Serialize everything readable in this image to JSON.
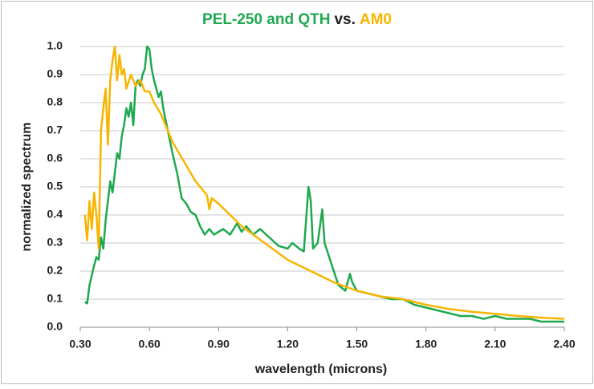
{
  "chart_data": {
    "type": "line",
    "title": [
      {
        "text": "PEL-250 and QTH",
        "color": "#1fa84f"
      },
      {
        "text": "vs.",
        "color": "#222222"
      },
      {
        "text": "AM0",
        "color": "#f7b500"
      }
    ],
    "x_label": "wavelength (microns)",
    "y_label": "normalized spectrum",
    "xlim": [
      0.3,
      2.4
    ],
    "ylim": [
      0,
      1
    ],
    "xticks": [
      {
        "value": 0.3,
        "label": "0.30"
      },
      {
        "value": 0.6,
        "label": "0.60"
      },
      {
        "value": 0.9,
        "label": "0.90"
      },
      {
        "value": 1.2,
        "label": "1.20"
      },
      {
        "value": 1.5,
        "label": "1.50"
      },
      {
        "value": 1.8,
        "label": "1.80"
      },
      {
        "value": 2.1,
        "label": "2.10"
      },
      {
        "value": 2.4,
        "label": "2.40"
      }
    ],
    "yticks": [
      {
        "value": 0,
        "label": "0.0"
      },
      0.1,
      0.2,
      0.3,
      0.4,
      0.5,
      0.6,
      0.7,
      0.8,
      0.9,
      {
        "value": 1,
        "label": "1.0"
      }
    ],
    "grid": true,
    "series": [
      {
        "color": "#1fa84f",
        "x": [
          0.32,
          0.33,
          0.34,
          0.36,
          0.37,
          0.38,
          0.39,
          0.4,
          0.41,
          0.42,
          0.43,
          0.44,
          0.45,
          0.46,
          0.47,
          0.48,
          0.49,
          0.5,
          0.51,
          0.52,
          0.53,
          0.54,
          0.55,
          0.56,
          0.57,
          0.58,
          0.59,
          0.6,
          0.61,
          0.62,
          0.63,
          0.64,
          0.65,
          0.66,
          0.68,
          0.7,
          0.72,
          0.74,
          0.76,
          0.78,
          0.8,
          0.82,
          0.84,
          0.86,
          0.88,
          0.9,
          0.92,
          0.95,
          0.98,
          1.0,
          1.02,
          1.05,
          1.08,
          1.12,
          1.16,
          1.2,
          1.22,
          1.25,
          1.27,
          1.29,
          1.3,
          1.31,
          1.33,
          1.35,
          1.36,
          1.38,
          1.42,
          1.45,
          1.47,
          1.48,
          1.5,
          1.55,
          1.6,
          1.65,
          1.7,
          1.75,
          1.8,
          1.85,
          1.9,
          1.95,
          2.0,
          2.05,
          2.1,
          2.15,
          2.2,
          2.25,
          2.3,
          2.35,
          2.4
        ],
        "values": [
          0.09,
          0.085,
          0.15,
          0.22,
          0.25,
          0.24,
          0.32,
          0.28,
          0.38,
          0.45,
          0.52,
          0.48,
          0.55,
          0.62,
          0.6,
          0.68,
          0.72,
          0.78,
          0.75,
          0.8,
          0.72,
          0.86,
          0.88,
          0.86,
          0.9,
          0.92,
          1.0,
          0.99,
          0.92,
          0.88,
          0.85,
          0.82,
          0.84,
          0.78,
          0.7,
          0.62,
          0.55,
          0.46,
          0.44,
          0.41,
          0.4,
          0.36,
          0.33,
          0.35,
          0.33,
          0.34,
          0.35,
          0.33,
          0.37,
          0.34,
          0.36,
          0.33,
          0.35,
          0.32,
          0.29,
          0.28,
          0.3,
          0.28,
          0.27,
          0.5,
          0.45,
          0.28,
          0.3,
          0.42,
          0.3,
          0.25,
          0.15,
          0.13,
          0.19,
          0.16,
          0.13,
          0.12,
          0.11,
          0.1,
          0.1,
          0.08,
          0.07,
          0.06,
          0.05,
          0.04,
          0.04,
          0.03,
          0.04,
          0.03,
          0.03,
          0.03,
          0.02,
          0.02,
          0.02
        ]
      },
      {
        "color": "#f7b500",
        "x": [
          0.32,
          0.33,
          0.34,
          0.35,
          0.36,
          0.37,
          0.38,
          0.39,
          0.4,
          0.41,
          0.42,
          0.43,
          0.44,
          0.45,
          0.46,
          0.47,
          0.48,
          0.49,
          0.5,
          0.52,
          0.54,
          0.56,
          0.58,
          0.6,
          0.62,
          0.65,
          0.7,
          0.75,
          0.8,
          0.85,
          0.86,
          0.87,
          0.9,
          0.95,
          1.0,
          1.05,
          1.1,
          1.2,
          1.3,
          1.4,
          1.5,
          1.6,
          1.7,
          1.8,
          1.9,
          2.0,
          2.1,
          2.2,
          2.3,
          2.4
        ],
        "values": [
          0.4,
          0.31,
          0.45,
          0.35,
          0.48,
          0.4,
          0.28,
          0.7,
          0.78,
          0.85,
          0.65,
          0.88,
          0.95,
          1.0,
          0.88,
          0.97,
          0.9,
          0.92,
          0.85,
          0.9,
          0.86,
          0.88,
          0.84,
          0.84,
          0.8,
          0.76,
          0.66,
          0.59,
          0.52,
          0.47,
          0.42,
          0.46,
          0.44,
          0.4,
          0.36,
          0.33,
          0.3,
          0.24,
          0.2,
          0.16,
          0.13,
          0.11,
          0.1,
          0.08,
          0.065,
          0.055,
          0.048,
          0.04,
          0.034,
          0.03
        ]
      }
    ]
  }
}
